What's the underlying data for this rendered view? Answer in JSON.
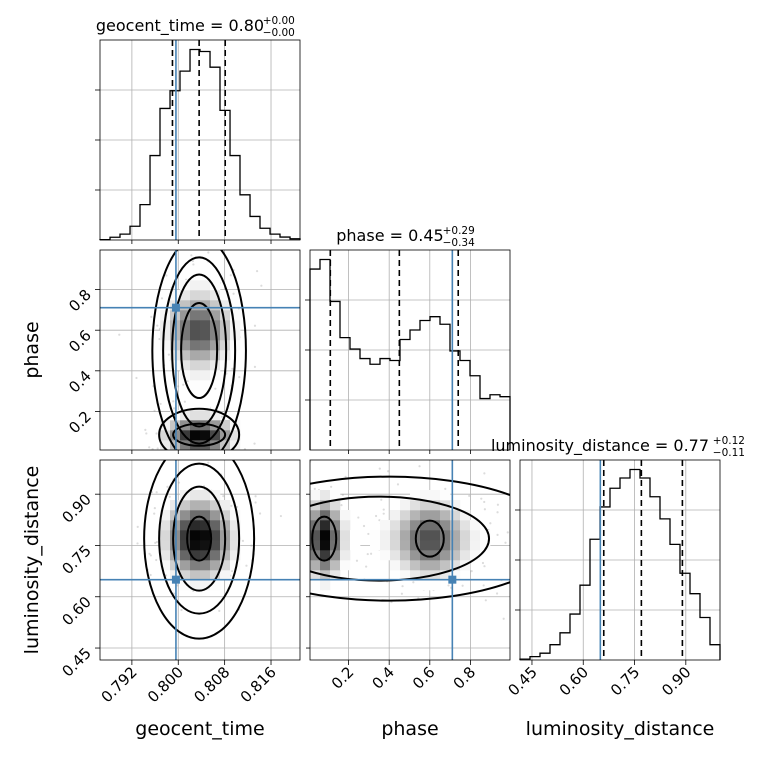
{
  "chart_data": {
    "type": "corner",
    "parameters": [
      "geocent_time",
      "phase",
      "luminosity_distance"
    ],
    "truths": {
      "geocent_time": 0.7996,
      "phase": 0.711,
      "luminosity_distance": 0.65
    },
    "ranges": {
      "geocent_time": [
        0.7865,
        0.821
      ],
      "phase": [
        0.01,
        0.995
      ],
      "luminosity_distance": [
        0.415,
        1.0
      ]
    },
    "ticks": {
      "geocent_time": [
        "0.792",
        "0.800",
        "0.808",
        "0.816"
      ],
      "phase": [
        "0.2",
        "0.4",
        "0.6",
        "0.8"
      ],
      "luminosity_distance": [
        "0.45",
        "0.60",
        "0.75",
        "0.90"
      ]
    },
    "titles": [
      {
        "param": "geocent_time",
        "text": "geocent_time = 0.80",
        "sup": "+0.00",
        "sub": "−0.00",
        "median": 0.8036,
        "q16": 0.799,
        "q84": 0.8081
      },
      {
        "param": "phase",
        "text": "phase = 0.45",
        "sup": "+0.29",
        "sub": "−0.34",
        "median": 0.45,
        "q16": 0.11,
        "q84": 0.74
      },
      {
        "param": "luminosity_distance",
        "text": "luminosity_distance = 0.77",
        "sup": "+0.12",
        "sub": "−0.11",
        "median": 0.77,
        "q16": 0.66,
        "q84": 0.89
      }
    ],
    "histograms": {
      "geocent_time": {
        "edges": [
          0.7865,
          0.78823,
          0.78995,
          0.79168,
          0.7934,
          0.79513,
          0.79685,
          0.79858,
          0.8003,
          0.80203,
          0.80375,
          0.80548,
          0.8072,
          0.80893,
          0.81065,
          0.81238,
          0.8141,
          0.81583,
          0.81755,
          0.81928,
          0.821
        ],
        "counts": [
          0.2,
          1.4,
          3.0,
          7.0,
          18.0,
          43.0,
          67.0,
          76.0,
          86.0,
          97.0,
          96.0,
          88.0,
          66.0,
          43.0,
          23.0,
          12.0,
          6.0,
          3.0,
          1.5,
          0.6
        ]
      },
      "phase": {
        "edges": [
          0.01,
          0.05925,
          0.1085,
          0.15775,
          0.207,
          0.25625,
          0.3055,
          0.35475,
          0.404,
          0.45325,
          0.5025,
          0.55175,
          0.601,
          0.65025,
          0.6995,
          0.74875,
          0.798,
          0.84725,
          0.8965,
          0.94575,
          0.995
        ],
        "counts": [
          95.0,
          100.0,
          78.0,
          59.0,
          53.0,
          48.0,
          45.0,
          48.0,
          47.0,
          58.0,
          63.0,
          68.0,
          70.0,
          66.0,
          52.0,
          47.0,
          39.0,
          27.0,
          29.0,
          28.0
        ]
      },
      "luminosity_distance": {
        "edges": [
          0.415,
          0.44425,
          0.4735,
          0.50275,
          0.532,
          0.56125,
          0.5905,
          0.61975,
          0.649,
          0.67825,
          0.7075,
          0.73675,
          0.766,
          0.79525,
          0.8245,
          0.85375,
          0.883,
          0.91225,
          0.9415,
          0.97075,
          1.0
        ],
        "counts": [
          0.5,
          2.0,
          4.0,
          9.0,
          16.0,
          27.0,
          44.0,
          71.0,
          90.0,
          101.0,
          107.0,
          112.0,
          107.0,
          96.0,
          83.0,
          68.0,
          51.0,
          39.0,
          25.0,
          9.0
        ]
      }
    },
    "x_labels": [
      "geocent_time",
      "phase",
      "luminosity_distance"
    ],
    "y_labels": [
      "",
      "phase",
      "luminosity_distance"
    ],
    "grid": true
  }
}
